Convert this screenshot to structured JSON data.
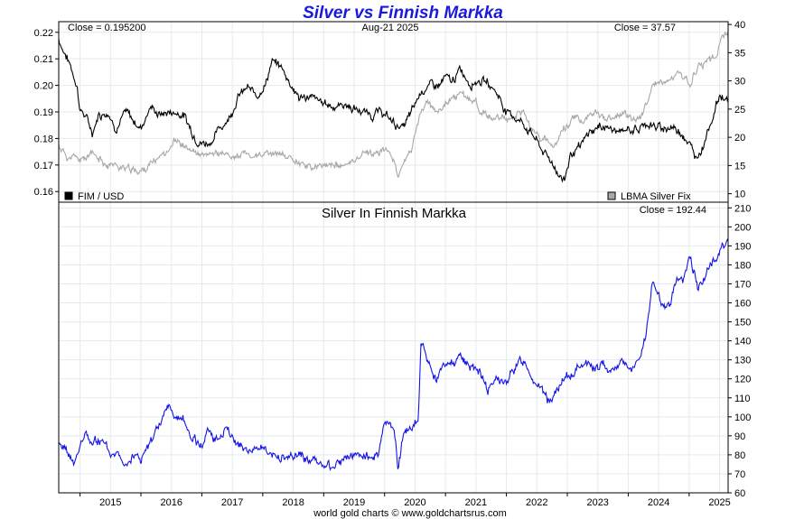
{
  "title": "Silver vs Finnish Markka",
  "footer": "world gold charts © www.goldchartsrus.com",
  "colors": {
    "title": "#1a1adc",
    "fim": "#000000",
    "silver": "#a8a8a8",
    "markka": "#1414e6",
    "grid": "#e3eaf0"
  },
  "chart_data": [
    {
      "type": "line",
      "panel": "top",
      "date_label": "Aug-21  2025",
      "left_close_label": "Close = 0.195200",
      "right_close_label": "Close = 37.57",
      "x_ticks": [
        "2015",
        "2016",
        "2017",
        "2018",
        "2019",
        "2020",
        "2021",
        "2022",
        "2023",
        "2024",
        "2025"
      ],
      "x_range": [
        2014.65,
        2025.64
      ],
      "left_axis": {
        "ticks": [
          "0.16",
          "0.17",
          "0.18",
          "0.19",
          "0.20",
          "0.21",
          "0.22"
        ],
        "range": [
          0.156,
          0.224
        ]
      },
      "right_axis": {
        "ticks": [
          "10",
          "15",
          "20",
          "25",
          "30",
          "35",
          "40"
        ],
        "range": [
          8.5,
          40.5
        ]
      },
      "legend": {
        "left": "FIM / USD",
        "right": "LBMA Silver Fix",
        "placement": "bottom"
      },
      "series": [
        {
          "name": "FIM / USD",
          "axis": "left",
          "x": [
            2014.65,
            2014.75,
            2014.85,
            2014.95,
            2015.0,
            2015.1,
            2015.2,
            2015.3,
            2015.45,
            2015.6,
            2015.75,
            2015.9,
            2016.0,
            2016.15,
            2016.3,
            2016.5,
            2016.7,
            2016.85,
            2016.95,
            2017.05,
            2017.15,
            2017.3,
            2017.45,
            2017.6,
            2017.75,
            2017.9,
            2018.05,
            2018.15,
            2018.3,
            2018.45,
            2018.6,
            2018.75,
            2018.9,
            2019.05,
            2019.2,
            2019.35,
            2019.5,
            2019.65,
            2019.8,
            2019.95,
            2020.1,
            2020.2,
            2020.3,
            2020.45,
            2020.6,
            2020.75,
            2020.9,
            2021.0,
            2021.1,
            2021.25,
            2021.4,
            2021.55,
            2021.7,
            2021.85,
            2022.0,
            2022.15,
            2022.3,
            2022.45,
            2022.6,
            2022.75,
            2022.85,
            2022.95,
            2023.05,
            2023.2,
            2023.35,
            2023.5,
            2023.6,
            2023.75,
            2023.9,
            2024.0,
            2024.15,
            2024.3,
            2024.45,
            2024.6,
            2024.75,
            2024.9,
            2025.0,
            2025.1,
            2025.2,
            2025.35,
            2025.5,
            2025.64
          ],
          "y": [
            0.2175,
            0.212,
            0.207,
            0.2,
            0.191,
            0.188,
            0.182,
            0.189,
            0.19,
            0.184,
            0.19,
            0.186,
            0.184,
            0.192,
            0.189,
            0.19,
            0.189,
            0.182,
            0.179,
            0.178,
            0.179,
            0.184,
            0.188,
            0.196,
            0.199,
            0.196,
            0.201,
            0.209,
            0.207,
            0.201,
            0.195,
            0.196,
            0.194,
            0.193,
            0.192,
            0.193,
            0.191,
            0.19,
            0.189,
            0.19,
            0.187,
            0.185,
            0.184,
            0.19,
            0.198,
            0.2,
            0.2,
            0.203,
            0.201,
            0.206,
            0.201,
            0.202,
            0.201,
            0.197,
            0.19,
            0.188,
            0.185,
            0.181,
            0.175,
            0.171,
            0.167,
            0.164,
            0.174,
            0.176,
            0.182,
            0.184,
            0.185,
            0.183,
            0.182,
            0.184,
            0.183,
            0.186,
            0.184,
            0.184,
            0.184,
            0.182,
            0.178,
            0.173,
            0.176,
            0.186,
            0.196,
            0.195
          ]
        },
        {
          "name": "LBMA Silver Fix",
          "axis": "right",
          "x": [
            2014.65,
            2014.8,
            2015.0,
            2015.2,
            2015.4,
            2015.6,
            2015.8,
            2016.0,
            2016.2,
            2016.4,
            2016.55,
            2016.7,
            2016.9,
            2017.05,
            2017.3,
            2017.5,
            2017.7,
            2017.9,
            2018.1,
            2018.3,
            2018.5,
            2018.7,
            2018.9,
            2019.1,
            2019.3,
            2019.5,
            2019.65,
            2019.8,
            2019.95,
            2020.05,
            2020.15,
            2020.22,
            2020.3,
            2020.45,
            2020.6,
            2020.7,
            2020.85,
            2021.0,
            2021.1,
            2021.3,
            2021.5,
            2021.7,
            2021.9,
            2022.1,
            2022.25,
            2022.4,
            2022.55,
            2022.7,
            2022.8,
            2022.95,
            2023.1,
            2023.25,
            2023.45,
            2023.6,
            2023.8,
            2023.95,
            2024.1,
            2024.25,
            2024.4,
            2024.55,
            2024.7,
            2024.85,
            2025.0,
            2025.15,
            2025.3,
            2025.45,
            2025.55,
            2025.64
          ],
          "y": [
            18.5,
            16.5,
            16.0,
            16.8,
            15.5,
            15.0,
            14.2,
            14.0,
            15.5,
            17.5,
            19.5,
            18.5,
            17.0,
            16.5,
            17.3,
            16.5,
            17.0,
            16.5,
            17.0,
            16.8,
            16.3,
            15.2,
            14.5,
            15.5,
            14.6,
            15.8,
            17.5,
            17.0,
            17.8,
            17.5,
            16.0,
            13.5,
            15.0,
            18.0,
            24.5,
            26.5,
            24.0,
            26.0,
            27.0,
            27.5,
            26.0,
            23.5,
            23.0,
            23.5,
            25.0,
            22.0,
            19.5,
            19.0,
            19.0,
            21.5,
            23.5,
            23.0,
            24.5,
            23.0,
            23.5,
            24.0,
            23.0,
            24.5,
            29.0,
            29.5,
            30.0,
            31.0,
            29.5,
            32.5,
            33.0,
            34.5,
            38.5,
            37.57
          ]
        }
      ]
    },
    {
      "type": "line",
      "panel": "bottom",
      "title": "Silver In Finnish Markka",
      "close_label": "Close = 192.44",
      "x_range": [
        2014.65,
        2025.64
      ],
      "y_axis": {
        "ticks": [
          "60",
          "70",
          "80",
          "90",
          "100",
          "110",
          "120",
          "130",
          "140",
          "150",
          "160",
          "170",
          "180",
          "190",
          "200",
          "210"
        ],
        "range": [
          60,
          213
        ]
      },
      "series": [
        {
          "name": "",
          "x": [
            2014.65,
            2014.8,
            2014.9,
            2015.0,
            2015.1,
            2015.2,
            2015.35,
            2015.5,
            2015.6,
            2015.75,
            2015.9,
            2016.0,
            2016.15,
            2016.3,
            2016.45,
            2016.55,
            2016.7,
            2016.85,
            2017.0,
            2017.1,
            2017.25,
            2017.4,
            2017.55,
            2017.7,
            2017.85,
            2018.0,
            2018.15,
            2018.3,
            2018.45,
            2018.6,
            2018.75,
            2018.9,
            2019.0,
            2019.15,
            2019.3,
            2019.45,
            2019.6,
            2019.75,
            2019.9,
            2020.0,
            2020.1,
            2020.18,
            2020.22,
            2020.3,
            2020.45,
            2020.55,
            2020.6,
            2020.7,
            2020.85,
            2021.0,
            2021.1,
            2021.25,
            2021.4,
            2021.55,
            2021.7,
            2021.85,
            2022.0,
            2022.15,
            2022.3,
            2022.45,
            2022.6,
            2022.7,
            2022.85,
            2023.0,
            2023.15,
            2023.3,
            2023.45,
            2023.6,
            2023.75,
            2023.9,
            2024.05,
            2024.2,
            2024.3,
            2024.4,
            2024.5,
            2024.6,
            2024.7,
            2024.8,
            2024.9,
            2025.0,
            2025.15,
            2025.3,
            2025.45,
            2025.55,
            2025.64
          ],
          "y": [
            86,
            80,
            76,
            83,
            92,
            86,
            88,
            80,
            82,
            77,
            80,
            78,
            85,
            95,
            106,
            101,
            98,
            88,
            85,
            92,
            88,
            95,
            87,
            84,
            82,
            85,
            80,
            79,
            78,
            80,
            76,
            76,
            75,
            73,
            77,
            79,
            80,
            79,
            80,
            96,
            95,
            88,
            70,
            90,
            95,
            100,
            140,
            130,
            120,
            130,
            128,
            132,
            127,
            125,
            115,
            120,
            117,
            127,
            130,
            120,
            112,
            108,
            115,
            120,
            125,
            130,
            125,
            127,
            125,
            130,
            124,
            130,
            145,
            170,
            165,
            155,
            160,
            175,
            170,
            185,
            168,
            177,
            183,
            192,
            192.44
          ]
        }
      ]
    }
  ]
}
